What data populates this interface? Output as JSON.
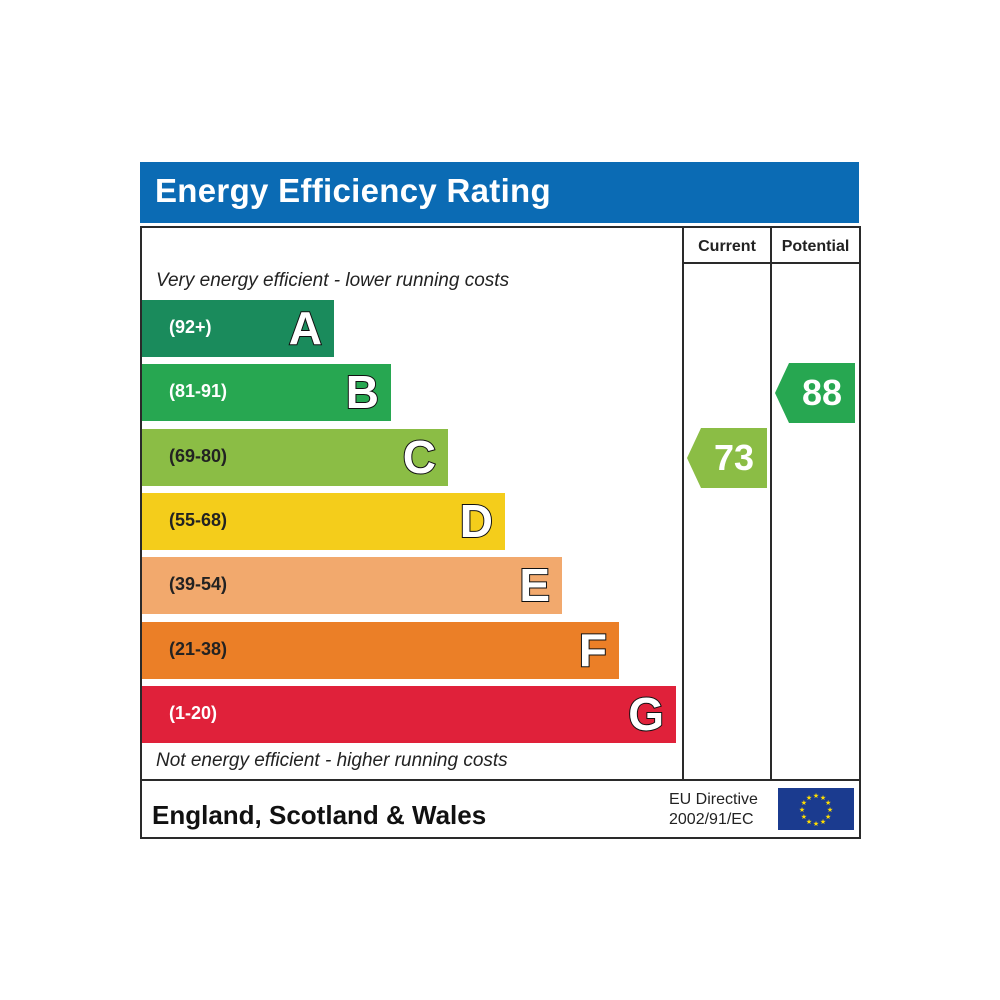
{
  "title": "Energy Efficiency Rating",
  "columns": {
    "current": "Current",
    "potential": "Potential"
  },
  "top_caption": "Very energy efficient - lower running costs",
  "bottom_caption": "Not energy efficient - higher running costs",
  "footer": {
    "region": "England, Scotland & Wales",
    "directive_line1": "EU Directive",
    "directive_line2": "2002/91/EC"
  },
  "chart_data": {
    "type": "bar",
    "title": "Energy Efficiency Rating",
    "categories": [
      "A",
      "B",
      "C",
      "D",
      "E",
      "F",
      "G"
    ],
    "ranges": [
      "(92+)",
      "(81-91)",
      "(69-80)",
      "(55-68)",
      "(39-54)",
      "(21-38)",
      "(1-20)"
    ],
    "colors": [
      "#1a8b5c",
      "#27a751",
      "#8bbd45",
      "#f4cd1b",
      "#f2a96d",
      "#eb7f27",
      "#e0213a"
    ],
    "range_text_colors": [
      "#ffffff",
      "#ffffff",
      "#222222",
      "#222222",
      "#222222",
      "#222222",
      "#ffffff"
    ],
    "current": {
      "value": 73,
      "band": "C",
      "color": "#8bbd45"
    },
    "potential": {
      "value": 88,
      "band": "B",
      "color": "#27a751"
    }
  }
}
